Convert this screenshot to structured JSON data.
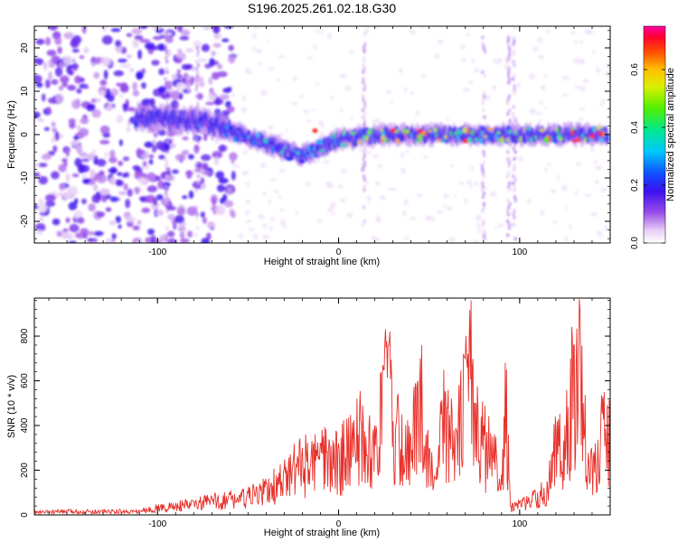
{
  "title": "S196.2025.261.02.18.G30",
  "chart_data": [
    {
      "type": "heatmap",
      "xlabel": "Height of straight line (km)",
      "ylabel": "Frequency (Hz)",
      "xlim": [
        -168,
        150
      ],
      "ylim": [
        -25,
        25
      ],
      "xticks": [
        -100,
        0,
        100
      ],
      "yticks": [
        -20,
        -10,
        0,
        10,
        20
      ],
      "colorbar": {
        "label": "Normalized spectral amplitude",
        "range": [
          0,
          0.75
        ],
        "ticks": [
          "0.0",
          "0.2",
          "0.4",
          "0.6"
        ]
      },
      "description_series": [
        {
          "x": -168,
          "peak_freq": 0,
          "amplitude": 0.02
        },
        {
          "x": -110,
          "peak_freq": 4,
          "amplitude": 0.2
        },
        {
          "x": -75,
          "peak_freq": 3,
          "amplitude": 0.25
        },
        {
          "x": -40,
          "peak_freq": -2,
          "amplitude": 0.35
        },
        {
          "x": -20,
          "peak_freq": -5,
          "amplitude": 0.35
        },
        {
          "x": 0,
          "peak_freq": -1,
          "amplitude": 0.5
        },
        {
          "x": 30,
          "peak_freq": 0,
          "amplitude": 0.6
        },
        {
          "x": 60,
          "peak_freq": 0,
          "amplitude": 0.6
        },
        {
          "x": 100,
          "peak_freq": 0,
          "amplitude": 0.55
        },
        {
          "x": 140,
          "peak_freq": 0,
          "amplitude": 0.7
        }
      ]
    },
    {
      "type": "line",
      "xlabel": "Height of straight line (km)",
      "ylabel": "SNR (10 * v/v)",
      "xlim": [
        -168,
        150
      ],
      "ylim": [
        0,
        970
      ],
      "xticks": [
        -100,
        0,
        100
      ],
      "yticks": [
        0,
        200,
        400,
        600,
        800
      ],
      "line_color": "#e8302a",
      "series": [
        {
          "x": [
            -168,
            -150,
            -130,
            -110,
            -100,
            -90,
            -80,
            -70,
            -60,
            -50,
            -40,
            -30,
            -25,
            -20,
            -15,
            -10,
            -5,
            0,
            5,
            10,
            15,
            20,
            25,
            28,
            30,
            35,
            40,
            45,
            50,
            55,
            58,
            60,
            65,
            70,
            72,
            73,
            75,
            80,
            85,
            90,
            92,
            95,
            100,
            105,
            110,
            115,
            120,
            125,
            130,
            133,
            135,
            140,
            145,
            150
          ],
          "y": [
            15,
            20,
            20,
            20,
            40,
            50,
            60,
            80,
            90,
            100,
            140,
            200,
            260,
            300,
            280,
            320,
            310,
            320,
            360,
            520,
            350,
            400,
            650,
            780,
            420,
            450,
            350,
            700,
            300,
            230,
            650,
            480,
            380,
            700,
            790,
            960,
            500,
            400,
            350,
            180,
            680,
            40,
            60,
            80,
            100,
            150,
            380,
            400,
            760,
            965,
            500,
            250,
            450,
            480
          ]
        }
      ]
    }
  ]
}
